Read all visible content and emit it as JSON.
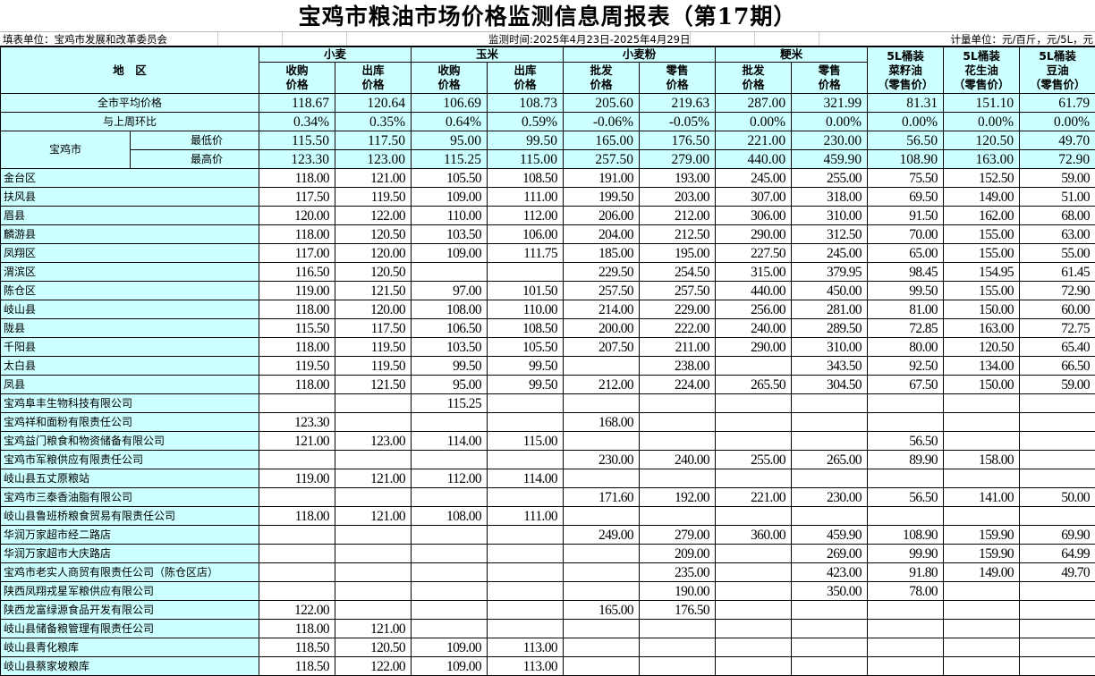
{
  "title": "宝鸡市粮油市场价格监测信息周报表（第17期）",
  "info": {
    "filler": "填表单位：宝鸡市发展和改革委员会",
    "period": "监测时间:2025年4月23日-2025年4月29日",
    "unit": "计量单位：元/百斤，元/5L，元"
  },
  "header": {
    "region": "地　区",
    "groups": [
      "小麦",
      "玉米",
      "小麦粉",
      "粳米"
    ],
    "sub": [
      "收购\n价格",
      "出库\n价格",
      "收购\n价格",
      "出库\n价格",
      "批发\n价格",
      "零售\n价格",
      "批发\n价格",
      "零售\n价格"
    ],
    "oils": [
      "5L桶装\n菜籽油\n（零售价）",
      "5L桶装\n花生油\n（零售价）",
      "5L桶装\n豆油\n（零售价）"
    ]
  },
  "summary": {
    "avg": {
      "label": "全市平均价格",
      "values": [
        "118.67",
        "120.64",
        "106.69",
        "108.73",
        "205.60",
        "219.63",
        "287.00",
        "321.99",
        "81.31",
        "151.10",
        "61.79"
      ]
    },
    "wow": {
      "label": "与上周环比",
      "values": [
        "0.34%",
        "0.35%",
        "0.64%",
        "0.59%",
        "-0.06%",
        "-0.05%",
        "0.00%",
        "0.00%",
        "0.00%",
        "0.00%",
        "0.00%"
      ]
    },
    "city": "宝鸡市",
    "min": {
      "label": "最低价",
      "values": [
        "115.50",
        "117.50",
        "95.00",
        "99.50",
        "165.00",
        "176.50",
        "221.00",
        "230.00",
        "56.50",
        "120.50",
        "49.70"
      ]
    },
    "max": {
      "label": "最高价",
      "values": [
        "123.30",
        "123.00",
        "115.25",
        "115.00",
        "257.50",
        "279.00",
        "440.00",
        "459.90",
        "108.90",
        "163.00",
        "72.90"
      ]
    }
  },
  "rows": [
    {
      "name": "金台区",
      "values": [
        "118.00",
        "121.00",
        "105.50",
        "108.50",
        "191.00",
        "193.00",
        "245.00",
        "255.00",
        "75.50",
        "152.50",
        "59.00"
      ]
    },
    {
      "name": "扶风县",
      "values": [
        "117.50",
        "119.50",
        "109.00",
        "111.00",
        "199.50",
        "203.00",
        "307.00",
        "318.00",
        "69.50",
        "149.00",
        "51.00"
      ]
    },
    {
      "name": "眉县",
      "values": [
        "120.00",
        "122.00",
        "110.00",
        "112.00",
        "206.00",
        "212.00",
        "306.00",
        "310.00",
        "91.50",
        "162.00",
        "68.00"
      ]
    },
    {
      "name": "麟游县",
      "values": [
        "118.00",
        "120.50",
        "103.50",
        "106.00",
        "204.00",
        "212.50",
        "290.00",
        "312.50",
        "70.00",
        "155.00",
        "63.00"
      ]
    },
    {
      "name": "凤翔区",
      "values": [
        "117.00",
        "120.00",
        "109.00",
        "111.75",
        "185.00",
        "195.00",
        "227.50",
        "245.00",
        "65.00",
        "155.00",
        "55.00"
      ]
    },
    {
      "name": "渭滨区",
      "values": [
        "116.50",
        "120.50",
        "",
        "",
        "229.50",
        "254.50",
        "315.00",
        "379.95",
        "98.45",
        "154.95",
        "61.45"
      ]
    },
    {
      "name": "陈仓区",
      "values": [
        "119.00",
        "121.50",
        "97.00",
        "101.50",
        "257.50",
        "257.50",
        "440.00",
        "450.00",
        "99.50",
        "155.00",
        "72.90"
      ]
    },
    {
      "name": "岐山县",
      "values": [
        "118.00",
        "120.00",
        "108.00",
        "110.00",
        "214.00",
        "229.00",
        "256.00",
        "281.00",
        "81.00",
        "150.00",
        "60.00"
      ]
    },
    {
      "name": "陇县",
      "values": [
        "115.50",
        "117.50",
        "106.50",
        "108.50",
        "200.00",
        "222.00",
        "240.00",
        "289.50",
        "72.85",
        "163.00",
        "72.75"
      ]
    },
    {
      "name": "千阳县",
      "values": [
        "118.00",
        "119.50",
        "103.50",
        "105.50",
        "207.50",
        "211.00",
        "290.00",
        "310.00",
        "80.00",
        "120.50",
        "65.40"
      ]
    },
    {
      "name": "太白县",
      "values": [
        "119.50",
        "119.50",
        "99.50",
        "99.50",
        "",
        "238.00",
        "",
        "343.50",
        "92.50",
        "134.00",
        "66.50"
      ]
    },
    {
      "name": "凤县",
      "values": [
        "118.00",
        "121.50",
        "95.00",
        "99.50",
        "212.00",
        "224.00",
        "265.50",
        "304.50",
        "67.50",
        "150.00",
        "59.00"
      ]
    },
    {
      "name": "宝鸡阜丰生物科技有限公司",
      "values": [
        "",
        "",
        "115.25",
        "",
        "",
        "",
        "",
        "",
        "",
        "",
        ""
      ]
    },
    {
      "name": "宝鸡祥和面粉有限责任公司",
      "values": [
        "123.30",
        "",
        "",
        "",
        "168.00",
        "",
        "",
        "",
        "",
        "",
        ""
      ]
    },
    {
      "name": "宝鸡益门粮食和物资储备有限公司",
      "values": [
        "121.00",
        "123.00",
        "114.00",
        "115.00",
        "",
        "",
        "",
        "",
        "56.50",
        "",
        ""
      ]
    },
    {
      "name": "宝鸡市军粮供应有限责任公司",
      "values": [
        "",
        "",
        "",
        "",
        "230.00",
        "240.00",
        "255.00",
        "265.00",
        "89.90",
        "158.00",
        ""
      ]
    },
    {
      "name": "岐山县五丈原粮站",
      "values": [
        "119.00",
        "121.00",
        "112.00",
        "114.00",
        "",
        "",
        "",
        "",
        "",
        "",
        ""
      ]
    },
    {
      "name": "宝鸡市三泰香油脂有限公司",
      "values": [
        "",
        "",
        "",
        "",
        "171.60",
        "192.00",
        "221.00",
        "230.00",
        "56.50",
        "141.00",
        "50.00"
      ]
    },
    {
      "name": "岐山县鲁班桥粮食贸易有限责任公司",
      "values": [
        "118.00",
        "121.00",
        "108.00",
        "111.00",
        "",
        "",
        "",
        "",
        "",
        "",
        ""
      ]
    },
    {
      "name": "华润万家超市经二路店",
      "values": [
        "",
        "",
        "",
        "",
        "249.00",
        "279.00",
        "360.00",
        "459.90",
        "108.90",
        "159.90",
        "69.90"
      ]
    },
    {
      "name": "华润万家超市大庆路店",
      "values": [
        "",
        "",
        "",
        "",
        "",
        "209.00",
        "",
        "269.00",
        "99.90",
        "159.90",
        "64.99"
      ]
    },
    {
      "name": "宝鸡市老实人商贸有限责任公司（陈仓区店）",
      "values": [
        "",
        "",
        "",
        "",
        "",
        "235.00",
        "",
        "423.00",
        "91.80",
        "149.00",
        "49.70"
      ]
    },
    {
      "name": "陕西凤翔戎星军粮供应有限公司",
      "values": [
        "",
        "",
        "",
        "",
        "",
        "190.00",
        "",
        "350.00",
        "78.00",
        "",
        ""
      ]
    },
    {
      "name": "陕西龙富绿源食品开发有限公司",
      "values": [
        "122.00",
        "",
        "",
        "",
        "165.00",
        "176.50",
        "",
        "",
        "",
        "",
        ""
      ]
    },
    {
      "name": "岐山县储备粮管理有限责任公司",
      "values": [
        "118.00",
        "121.00",
        "",
        "",
        "",
        "",
        "",
        "",
        "",
        "",
        ""
      ]
    },
    {
      "name": "岐山县青化粮库",
      "values": [
        "118.50",
        "120.50",
        "109.00",
        "113.00",
        "",
        "",
        "",
        "",
        "",
        "",
        ""
      ]
    },
    {
      "name": "岐山县蔡家坡粮库",
      "values": [
        "118.50",
        "122.00",
        "109.00",
        "113.00",
        "",
        "",
        "",
        "",
        "",
        "",
        ""
      ]
    }
  ],
  "colors": {
    "header_bg": "#ccffff",
    "border": "#000000"
  }
}
